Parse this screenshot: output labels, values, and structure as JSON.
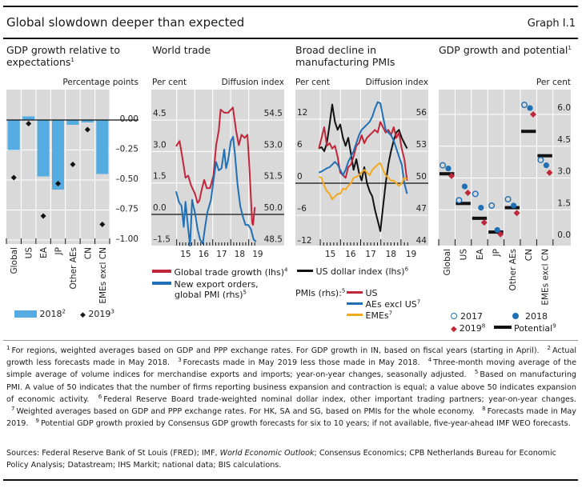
{
  "header": {
    "title": "Global slowdown deeper than expected",
    "graph_number": "Graph I.1"
  },
  "colors": {
    "bar": "#55ace0",
    "red": "#c1273b",
    "blue": "#1f70b5",
    "yellow": "#f2a91e",
    "black": "#111111",
    "plot_bg": "#d9d9d9"
  },
  "panels": {
    "p1": {
      "title": "GDP growth relative to expectations",
      "title_sup": "1",
      "unit": "Percentage points",
      "legend": [
        {
          "label": "2018",
          "sup": "2"
        },
        {
          "label": "2019",
          "sup": "3"
        }
      ]
    },
    "p2": {
      "title": "World trade",
      "unit_left": "Per cent",
      "unit_right": "Diffusion index",
      "legend": [
        {
          "label": "Global trade growth (lhs)",
          "sup": "4"
        },
        {
          "label": "New export orders,",
          "label2": "global PMI (rhs)",
          "sup": "5"
        }
      ]
    },
    "p3": {
      "title": "Broad decline in manufacturing PMIs",
      "unit_left": "Per cent",
      "unit_right": "Diffusion index",
      "legend_usd": {
        "label": "US dollar index (lhs)",
        "sup": "6"
      },
      "legend_pmi_prefix": "PMIs (rhs):",
      "legend_pmi_sup": "5",
      "legend": [
        {
          "label": "US",
          "sup": ""
        },
        {
          "label": "AEs excl US",
          "sup": "7"
        },
        {
          "label": "EMEs",
          "sup": "7"
        }
      ]
    },
    "p4": {
      "title": "GDP growth and potential",
      "title_sup": "1",
      "unit": "Per cent",
      "legend": [
        {
          "label": "2017",
          "sup": ""
        },
        {
          "label": "2018",
          "sup": ""
        },
        {
          "label": "2019",
          "sup": "8"
        },
        {
          "label": "Potential",
          "sup": "9"
        }
      ]
    }
  },
  "chart_data": [
    {
      "type": "bar",
      "title": "GDP growth relative to expectations",
      "ylabel": "Percentage points",
      "ylim": [
        -1.0,
        0.2
      ],
      "yticks": [
        "0.00",
        "–0.25",
        "–0.50",
        "–0.75",
        "–1.00"
      ],
      "ytick_values": [
        0,
        -0.25,
        -0.5,
        -0.75,
        -1.0
      ],
      "categories": [
        "Global",
        "US",
        "EA",
        "JP",
        "Other AEs",
        "CN",
        "EMEs excl CN"
      ],
      "series": [
        {
          "name": "2018",
          "kind": "bar",
          "values": [
            -0.25,
            0.03,
            -0.47,
            -0.58,
            -0.04,
            -0.02,
            -0.45
          ]
        },
        {
          "name": "2019",
          "kind": "diamond",
          "values": [
            -0.48,
            -0.03,
            -0.8,
            -0.53,
            -0.37,
            -0.08,
            -0.87
          ]
        }
      ]
    },
    {
      "type": "line",
      "title": "World trade",
      "x_tick_labels": [
        "15",
        "16",
        "17",
        "18",
        "19"
      ],
      "x_tick_years": [
        2015,
        2016,
        2017,
        2018,
        2019
      ],
      "ylim_left": [
        -1.5,
        6.0
      ],
      "ylim_right": [
        48.5,
        56.0
      ],
      "yticks_left": [
        "4.5",
        "3.0",
        "1.5",
        "0.0",
        "–1.5"
      ],
      "ytick_left_values": [
        4.5,
        3.0,
        1.5,
        0.0,
        -1.5
      ],
      "yticks_right": [
        "54.5",
        "53.0",
        "51.5",
        "50.0",
        "48.5"
      ],
      "ytick_right_values": [
        54.5,
        53.0,
        51.5,
        50.0,
        48.5
      ],
      "series": [
        {
          "name": "Global trade growth (lhs)",
          "axis": "left",
          "color": "red",
          "x": [
            2014.97,
            2015.16,
            2015.34,
            2015.49,
            2015.64,
            2015.79,
            2016.01,
            2016.16,
            2016.26,
            2016.38,
            2016.53,
            2016.67,
            2016.85,
            2017.04,
            2017.19,
            2017.34,
            2017.44,
            2017.64,
            2017.86,
            2018.12,
            2018.3,
            2018.45,
            2018.6,
            2018.78,
            2018.93,
            2019.04,
            2019.19,
            2019.24,
            2019.34
          ],
          "y": [
            3.25,
            3.5,
            2.6,
            1.75,
            1.85,
            1.4,
            1.0,
            0.55,
            0.65,
            1.15,
            1.65,
            1.25,
            1.25,
            1.85,
            3.3,
            4.0,
            5.0,
            4.85,
            4.85,
            5.1,
            4.0,
            3.3,
            3.8,
            3.65,
            3.8,
            2.2,
            -0.4,
            -0.5,
            0.35
          ]
        },
        {
          "name": "New export orders, global PMI (rhs)",
          "axis": "right",
          "color": "blue",
          "x": [
            2014.97,
            2015.12,
            2015.27,
            2015.39,
            2015.49,
            2015.64,
            2015.74,
            2015.86,
            2016.01,
            2016.16,
            2016.3,
            2016.45,
            2016.56,
            2016.7,
            2016.9,
            2017.04,
            2017.19,
            2017.34,
            2017.49,
            2017.64,
            2017.74,
            2017.86,
            2018.01,
            2018.13,
            2018.23,
            2018.38,
            2018.53,
            2018.67,
            2018.82,
            2018.97,
            2019.12,
            2019.27,
            2019.41
          ],
          "y": [
            51.1,
            50.6,
            50.4,
            49.4,
            50.6,
            49.3,
            48.5,
            50.7,
            50.1,
            49.3,
            48.8,
            48.6,
            49.3,
            50.1,
            50.7,
            51.6,
            52.5,
            52.1,
            52.2,
            53.1,
            52.2,
            52.6,
            53.5,
            53.7,
            52.9,
            51.4,
            50.4,
            49.9,
            49.5,
            49.5,
            49.3,
            48.8,
            48.7
          ]
        }
      ]
    },
    {
      "type": "line",
      "title": "Broad decline in manufacturing PMIs",
      "x_tick_labels": [
        "15",
        "16",
        "17",
        "18",
        "19"
      ],
      "x_tick_years": [
        2015,
        2016,
        2017,
        2018,
        2019
      ],
      "x_start": 2014.93,
      "x_end": 2019.3,
      "ylim_left": [
        -12,
        17.5
      ],
      "ylim_right": [
        44,
        58.75
      ],
      "yticks_left": [
        "12",
        "6",
        "0",
        "–6",
        "–12"
      ],
      "ytick_left_values": [
        12,
        6,
        0,
        -6,
        -12
      ],
      "yticks_right": [
        "56",
        "53",
        "50",
        "47",
        "44"
      ],
      "ytick_right_values": [
        56,
        53,
        50,
        47,
        44
      ],
      "series": [
        {
          "name": "US dollar index (lhs)",
          "axis": "left",
          "color": "black",
          "y": [
            6.5,
            6.75,
            6,
            7.5,
            11,
            14.75,
            11.5,
            10,
            11,
            8.5,
            7,
            8.5,
            5.5,
            2.5,
            4.5,
            2,
            0.5,
            3,
            0,
            -1.5,
            -2.5,
            -5,
            -7,
            -9,
            -4.5,
            0,
            3.5,
            6,
            8,
            9.5,
            10,
            8.5,
            7.5,
            6.5
          ]
        },
        {
          "name": "US",
          "axis": "right",
          "color": "red",
          "y": [
            53.25,
            54.25,
            55.25,
            53.5,
            53.75,
            53.25,
            53.5,
            52.5,
            51,
            50.75,
            50.5,
            51.5,
            51.75,
            52.5,
            53.5,
            53.75,
            54.5,
            53.75,
            54.25,
            54.5,
            54.75,
            55,
            54.75,
            55.75,
            55.25,
            54.75,
            55,
            54.5,
            55.25,
            54.25,
            54.75,
            53.25,
            52.25,
            50.25
          ]
        },
        {
          "name": "AEs excl US",
          "axis": "right",
          "color": "blue",
          "y": [
            51,
            51.1,
            51.25,
            51.4,
            51.5,
            51.75,
            52,
            51.75,
            51.25,
            50.75,
            51.25,
            52,
            52.5,
            53,
            53.75,
            54.5,
            55,
            55.25,
            55.5,
            55.75,
            56.25,
            57,
            57.6,
            57.5,
            56.25,
            55,
            54.75,
            54.5,
            54,
            53.25,
            52.5,
            51.75,
            50,
            49
          ]
        },
        {
          "name": "EMEs",
          "axis": "right",
          "color": "yellow",
          "y": [
            50.6,
            50.5,
            49.75,
            49.25,
            49,
            48.5,
            48.75,
            49,
            49,
            49.5,
            49.4,
            49.75,
            50,
            50.5,
            50.6,
            50.75,
            51,
            51.25,
            51,
            50.75,
            51.25,
            51.5,
            51.75,
            51.9,
            51.25,
            50.75,
            50.5,
            50.25,
            50.25,
            50,
            49.75,
            50,
            50.5,
            50.4
          ]
        }
      ]
    },
    {
      "type": "scatter",
      "title": "GDP growth and potential",
      "ylabel": "Per cent",
      "ylim": [
        0,
        7.2
      ],
      "yticks": [
        "6.0",
        "4.5",
        "3.0",
        "1.5",
        "0.0"
      ],
      "ytick_values": [
        6.0,
        4.5,
        3.0,
        1.5,
        0.0
      ],
      "categories": [
        "Global",
        "US",
        "EA",
        "JP",
        "Other AEs",
        "CN",
        "EMEs excl CN"
      ],
      "series": [
        {
          "name": "2017",
          "marker": "open-circle",
          "values": [
            3.6,
            1.95,
            2.25,
            1.7,
            2.0,
            6.45,
            3.85
          ]
        },
        {
          "name": "2018",
          "marker": "circle",
          "values": [
            3.45,
            2.6,
            1.6,
            0.55,
            1.7,
            6.3,
            3.6
          ]
        },
        {
          "name": "2019",
          "marker": "diamond",
          "values": [
            3.1,
            2.3,
            0.9,
            0.35,
            1.35,
            6.0,
            3.25
          ]
        },
        {
          "name": "Potential",
          "marker": "bar",
          "values": [
            3.2,
            1.8,
            1.1,
            0.45,
            1.6,
            5.2,
            4.05
          ]
        }
      ]
    }
  ],
  "footnotes": [
    {
      "num": "1",
      "text": "For regions, weighted averages based on GDP and PPP exchange rates. For GDP growth in IN, based on fiscal years (starting in April)."
    },
    {
      "num": "2",
      "text": "Actual growth less forecasts made in May 2018."
    },
    {
      "num": "3",
      "text": "Forecasts made in May 2019 less those made in May 2018."
    },
    {
      "num": "4",
      "text": "Three-month moving average of the simple average of volume indices for merchandise exports and imports; year-on-year changes, seasonally adjusted."
    },
    {
      "num": "5",
      "text": "Based on manufacturing PMI. A value of 50 indicates that the number of firms reporting business expansion and contraction is equal; a value above 50 indicates expansion of economic activity."
    },
    {
      "num": "6",
      "text": "Federal Reserve Board trade-weighted nominal dollar index, other important trading partners; year-on-year changes."
    },
    {
      "num": "7",
      "text": "Weighted averages based on GDP and PPP exchange rates. For HK, SA and SG, based on PMIs for the whole economy."
    },
    {
      "num": "8",
      "text": "Forecasts made in May 2019."
    },
    {
      "num": "9",
      "text": "Potential GDP growth proxied by Consensus GDP growth forecasts for six to 10 years; if not available, five-year-ahead IMF WEO forecasts."
    }
  ],
  "sources": {
    "prefix": "Sources: Federal Reserve Bank of St Louis (FRED); IMF, ",
    "italic": "World Economic Outlook",
    "suffix": "; Consensus Economics; CPB Netherlands Bureau for Economic Policy Analysis; Datastream; IHS Markit; national data; BIS calculations."
  }
}
